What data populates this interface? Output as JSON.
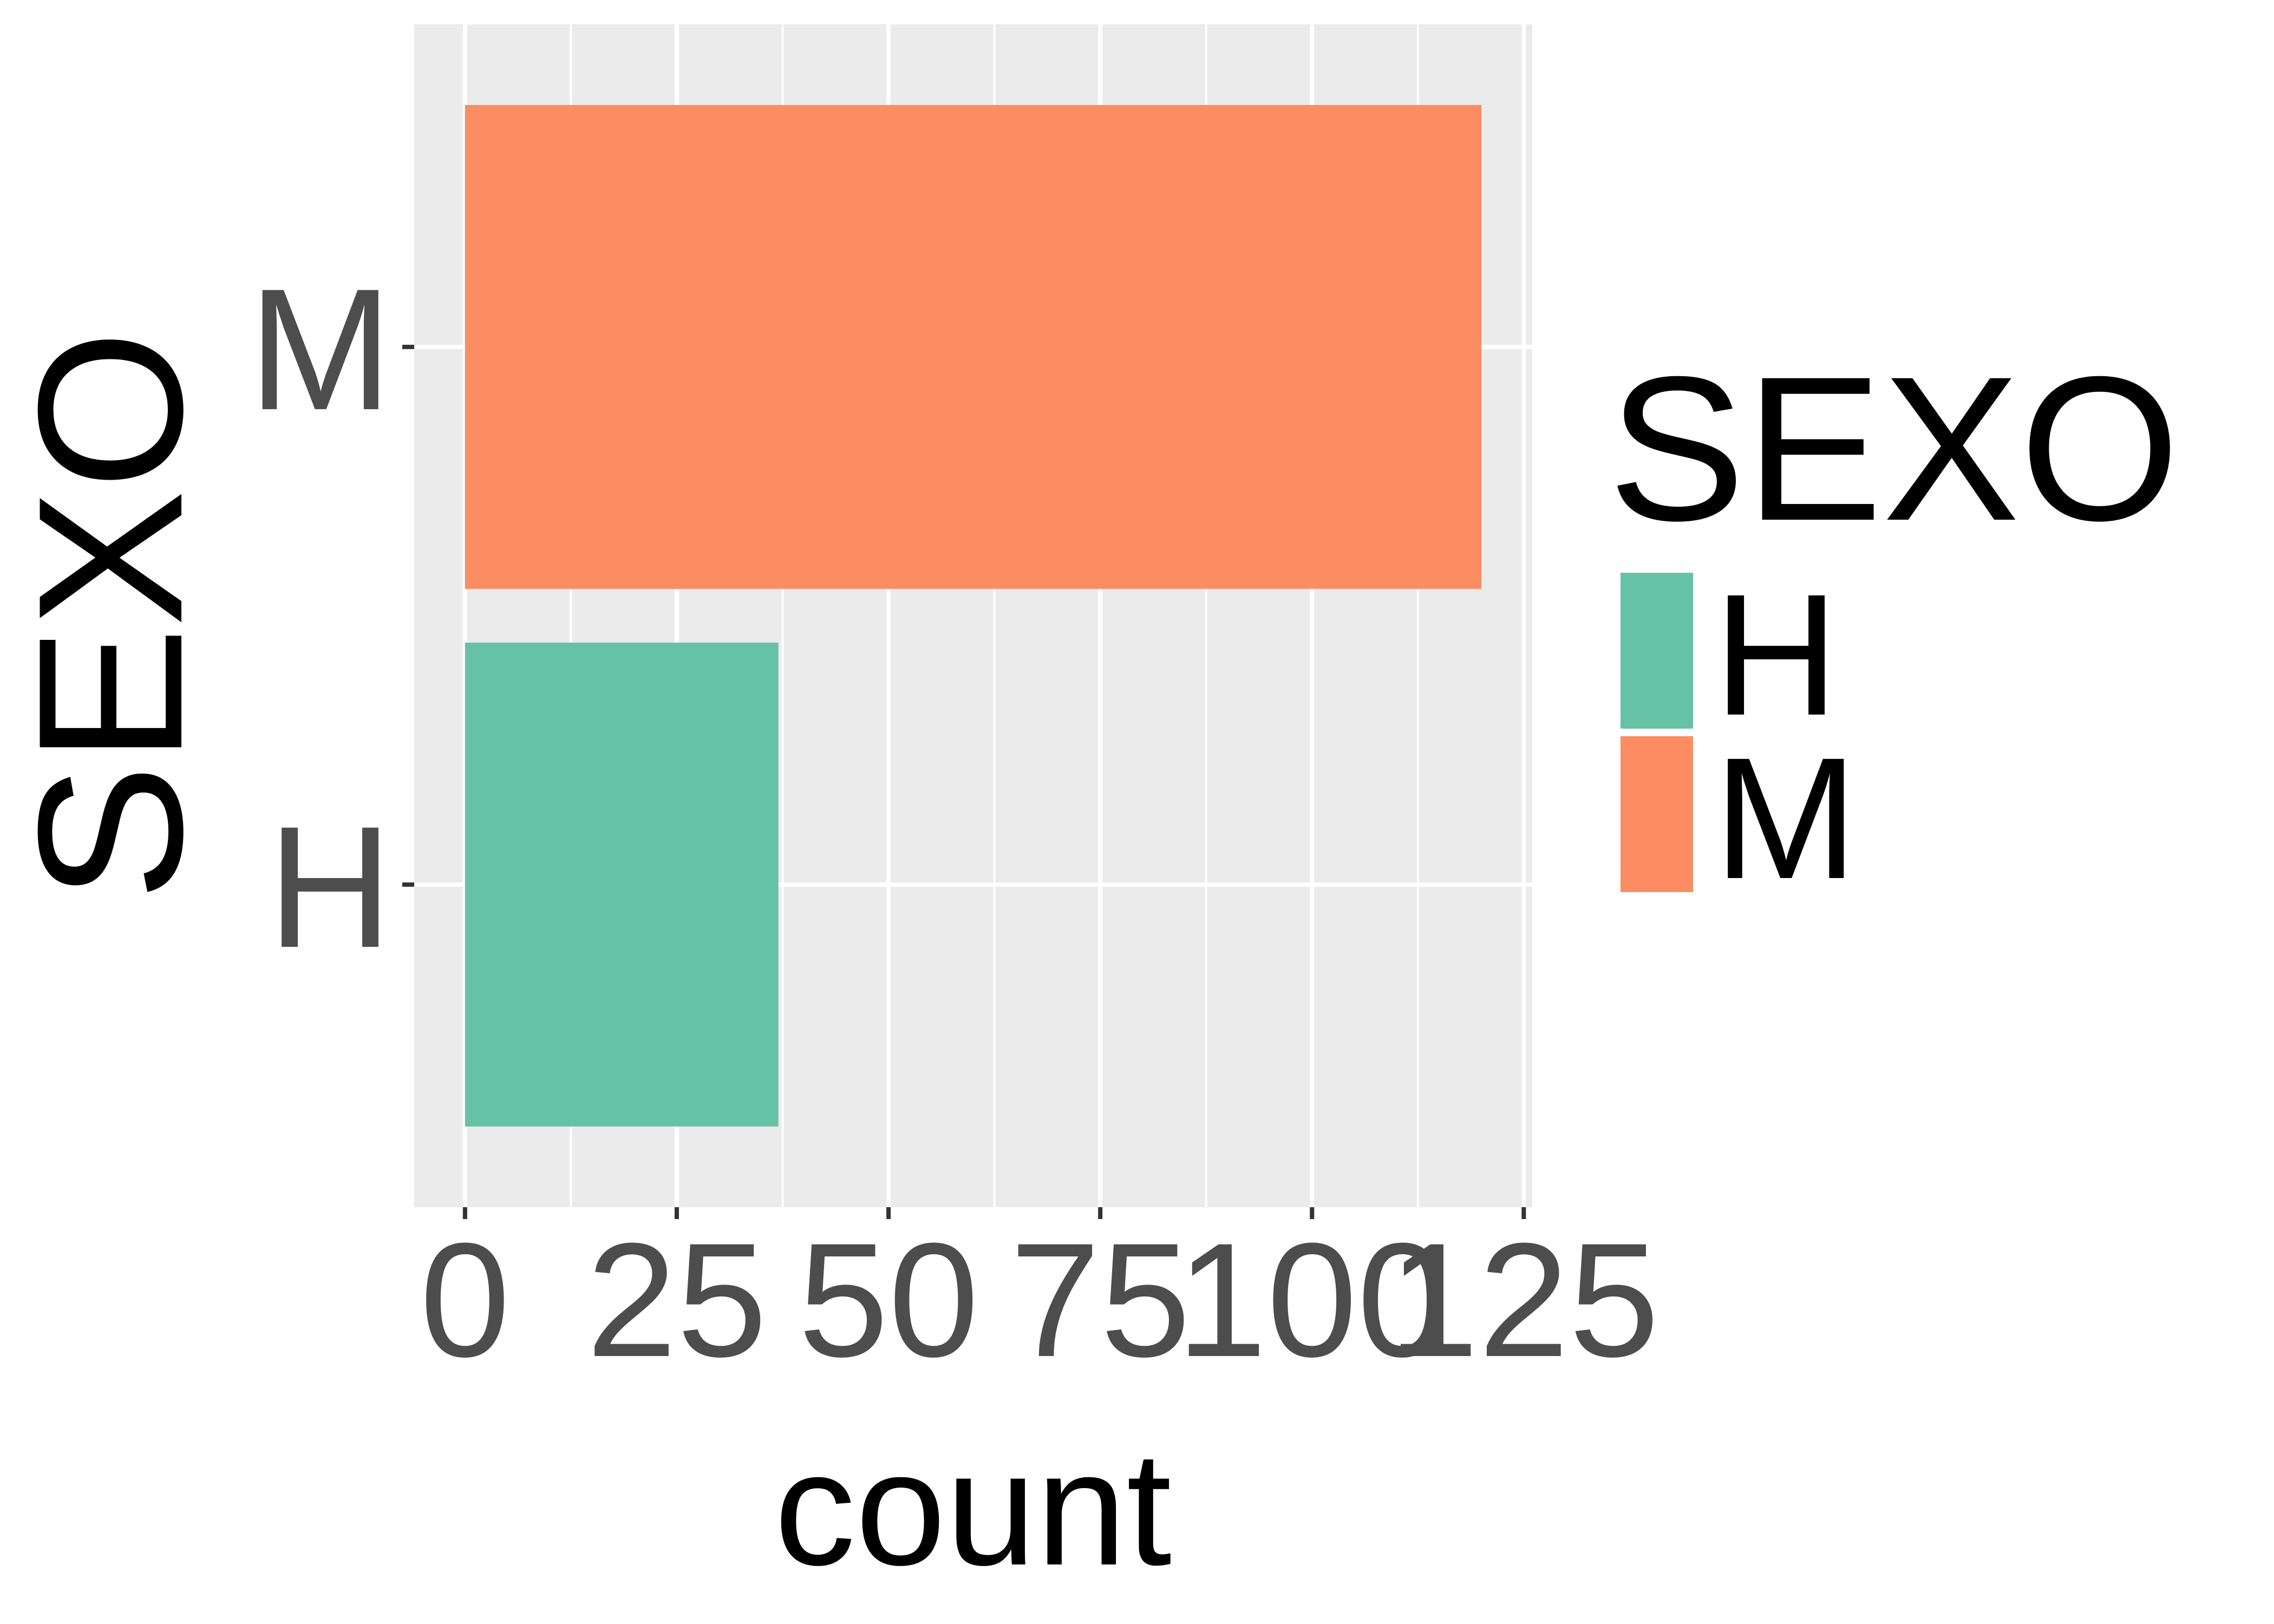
{
  "chart_data": {
    "type": "bar",
    "orientation": "horizontal",
    "categories": [
      "H",
      "M"
    ],
    "values": [
      37,
      120
    ],
    "colors": [
      "#66C2A5",
      "#FC8D62"
    ],
    "xlabel": "count",
    "ylabel": "SEXO",
    "xlim": [
      -6,
      126
    ],
    "x_ticks": [
      0,
      25,
      50,
      75,
      100,
      125
    ],
    "x_tick_labels": [
      "0",
      "25",
      "50",
      "75",
      "100",
      "125"
    ],
    "grid": true,
    "panel_background": "#EBEBEB",
    "grid_color": "#FFFFFF",
    "legend": {
      "title": "SEXO",
      "placement": "right",
      "entries": [
        {
          "label": "H",
          "color": "#66C2A5"
        },
        {
          "label": "M",
          "color": "#FC8D62"
        }
      ]
    }
  }
}
